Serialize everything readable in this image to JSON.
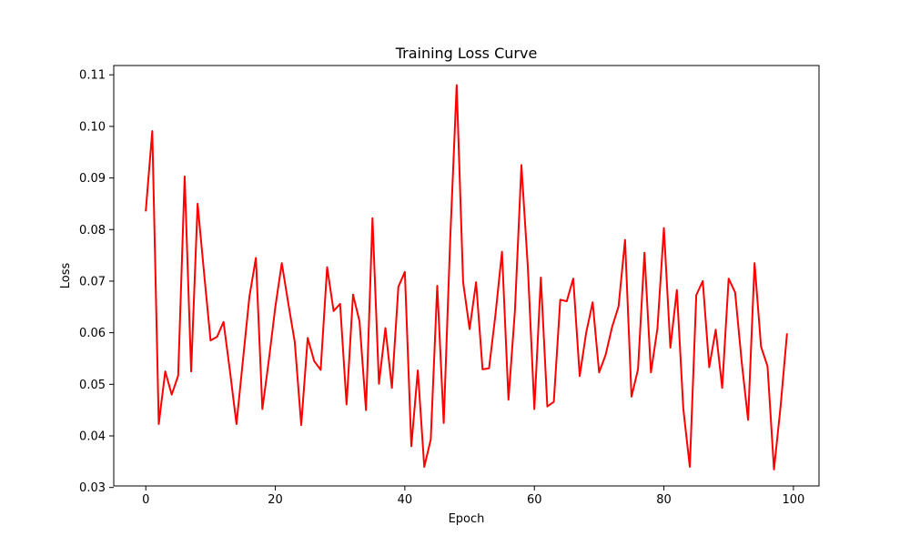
{
  "chart_data": {
    "type": "line",
    "title": "Training Loss Curve",
    "xlabel": "Epoch",
    "ylabel": "Loss",
    "xlim": [
      -4.95,
      103.95
    ],
    "ylim": [
      0.0303,
      0.1118
    ],
    "x_ticks": [
      0,
      20,
      40,
      60,
      80,
      100
    ],
    "y_ticks": [
      0.03,
      0.04,
      0.05,
      0.06,
      0.07,
      0.08,
      0.09,
      0.1,
      0.11
    ],
    "y_tick_labels": [
      "0.03",
      "0.04",
      "0.05",
      "0.06",
      "0.07",
      "0.08",
      "0.09",
      "0.10",
      "0.11"
    ],
    "grid": false,
    "legend": "none",
    "series": [
      {
        "color": "#ff0000",
        "x": [
          0,
          1,
          2,
          3,
          4,
          5,
          6,
          7,
          8,
          9,
          10,
          11,
          12,
          13,
          14,
          15,
          16,
          17,
          18,
          19,
          20,
          21,
          22,
          23,
          24,
          25,
          26,
          27,
          28,
          29,
          30,
          31,
          32,
          33,
          34,
          35,
          36,
          37,
          38,
          39,
          40,
          41,
          42,
          43,
          44,
          45,
          46,
          47,
          48,
          49,
          50,
          51,
          52,
          53,
          54,
          55,
          56,
          57,
          58,
          59,
          60,
          61,
          62,
          63,
          64,
          65,
          66,
          67,
          68,
          69,
          70,
          71,
          72,
          73,
          74,
          75,
          76,
          77,
          78,
          79,
          80,
          81,
          82,
          83,
          84,
          85,
          86,
          87,
          88,
          89,
          90,
          91,
          92,
          93,
          94,
          95,
          96,
          97,
          98,
          99
        ],
        "values": [
          0.0837,
          0.0991,
          0.0423,
          0.0525,
          0.048,
          0.0517,
          0.0903,
          0.0525,
          0.085,
          0.0715,
          0.0585,
          0.0592,
          0.0621,
          0.0525,
          0.0423,
          0.0547,
          0.067,
          0.0745,
          0.0452,
          0.0547,
          0.065,
          0.0735,
          0.0657,
          0.0582,
          0.0421,
          0.059,
          0.0545,
          0.0528,
          0.0727,
          0.0642,
          0.0656,
          0.0461,
          0.0674,
          0.0622,
          0.045,
          0.0822,
          0.0501,
          0.0609,
          0.0493,
          0.0689,
          0.0718,
          0.038,
          0.0527,
          0.034,
          0.0393,
          0.0691,
          0.0425,
          0.078,
          0.108,
          0.0698,
          0.0607,
          0.0698,
          0.0529,
          0.0531,
          0.0636,
          0.0757,
          0.047,
          0.0643,
          0.0925,
          0.0725,
          0.0452,
          0.0707,
          0.0457,
          0.0466,
          0.0664,
          0.0661,
          0.0705,
          0.0516,
          0.06,
          0.0659,
          0.0523,
          0.0557,
          0.0611,
          0.0651,
          0.078,
          0.0476,
          0.0529,
          0.0755,
          0.0523,
          0.0608,
          0.0803,
          0.0571,
          0.0683,
          0.0452,
          0.034,
          0.0673,
          0.07,
          0.0533,
          0.0606,
          0.0493,
          0.0705,
          0.0678,
          0.0545,
          0.0431,
          0.0735,
          0.0573,
          0.0535,
          0.0335,
          0.0455,
          0.0597
        ]
      }
    ]
  }
}
